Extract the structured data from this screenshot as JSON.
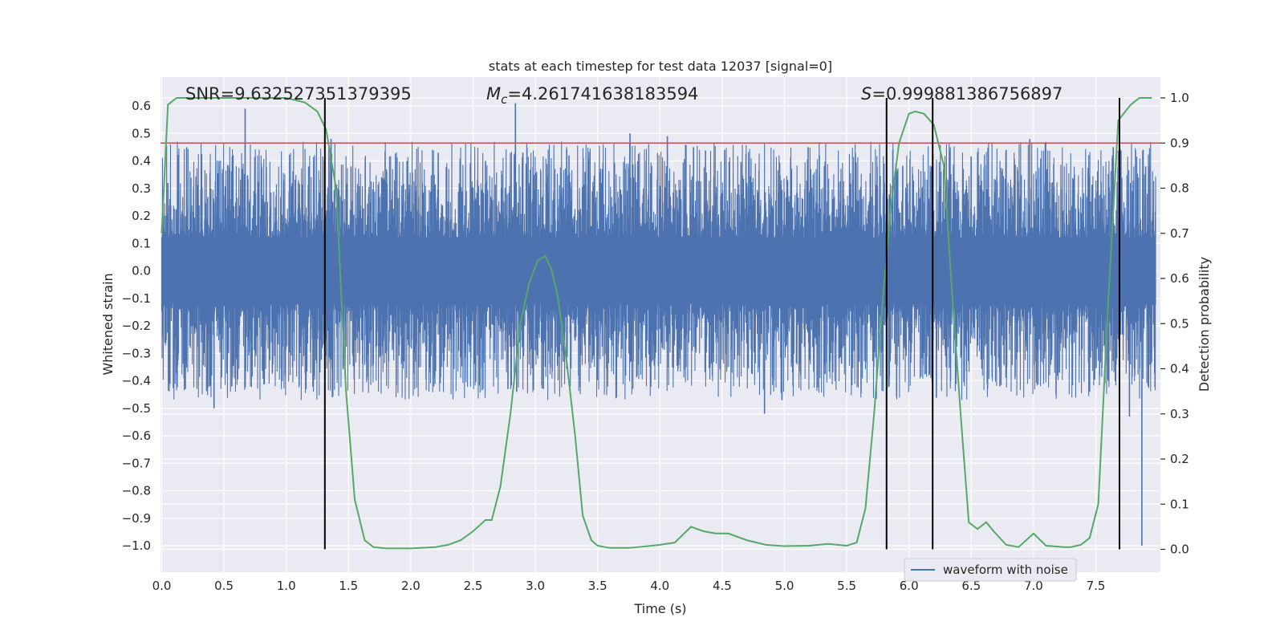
{
  "chart_data": {
    "type": "line",
    "title": "stats at each timestep for test data 12037 [signal=0]",
    "xlabel": "Time (s)",
    "ylabel": "Whitened strain",
    "y2label": "Detection probability",
    "xlim": [
      0.0,
      8.0
    ],
    "ylim": [
      -1.08,
      0.68
    ],
    "y2lim": [
      -0.045,
      1.035
    ],
    "xticks": [
      "0.0",
      "0.5",
      "1.0",
      "1.5",
      "2.0",
      "2.5",
      "3.0",
      "3.5",
      "4.0",
      "4.5",
      "5.0",
      "5.5",
      "6.0",
      "6.5",
      "7.0",
      "7.5"
    ],
    "yticks": [
      "0.6",
      "0.5",
      "0.4",
      "0.3",
      "0.2",
      "0.1",
      "0.0",
      "−0.1",
      "−0.2",
      "−0.3",
      "−0.4",
      "−0.5",
      "−0.6",
      "−0.7",
      "−0.8",
      "−0.9",
      "−1.0"
    ],
    "y2ticks": [
      "1.0",
      "0.9",
      "0.8",
      "0.7",
      "0.6",
      "0.5",
      "0.4",
      "0.3",
      "0.2",
      "0.1",
      "0.0"
    ],
    "annotations": {
      "snr": "SNR=9.632527351379395",
      "mc_symbol": "M",
      "mc_sub": "c",
      "mc_value": "=4.261741638183594",
      "s_symbol": "S",
      "s_value": "=0.999881386756897"
    },
    "legend": {
      "label": "waveform with noise",
      "location": "lower-right"
    },
    "series": [
      {
        "name": "waveform with noise",
        "axis": "left",
        "color": "#4c72b0",
        "envelope_upper": 0.27,
        "envelope_lower": -0.27,
        "spikes": [
          [
            0.05,
            0.32
          ],
          [
            0.19,
            -0.43
          ],
          [
            0.2,
            0.45
          ],
          [
            0.42,
            -0.5
          ],
          [
            0.46,
            0.4
          ],
          [
            0.67,
            0.59
          ],
          [
            1.18,
            0.38
          ],
          [
            1.27,
            -0.37
          ],
          [
            1.36,
            0.48
          ],
          [
            1.37,
            -0.46
          ],
          [
            1.52,
            0.38
          ],
          [
            1.97,
            0.4
          ],
          [
            2.22,
            0.43
          ],
          [
            2.6,
            0.4
          ],
          [
            2.78,
            -0.43
          ],
          [
            2.84,
            0.61
          ],
          [
            2.85,
            -0.44
          ],
          [
            2.9,
            0.43
          ],
          [
            3.27,
            0.42
          ],
          [
            3.76,
            0.5
          ],
          [
            4.06,
            0.49
          ],
          [
            4.27,
            0.45
          ],
          [
            4.52,
            0.44
          ],
          [
            4.84,
            -0.52
          ],
          [
            4.98,
            -0.47
          ],
          [
            5.19,
            0.45
          ],
          [
            5.28,
            0.42
          ],
          [
            5.84,
            -0.42
          ],
          [
            5.87,
            0.44
          ],
          [
            6.18,
            0.38
          ],
          [
            6.73,
            -0.42
          ],
          [
            6.78,
            0.44
          ],
          [
            6.97,
            0.48
          ],
          [
            7.45,
            -0.44
          ],
          [
            7.64,
            0.45
          ],
          [
            7.69,
            -0.56
          ],
          [
            7.77,
            -0.53
          ],
          [
            7.87,
            -1.0
          ],
          [
            7.88,
            0.44
          ],
          [
            7.9,
            0.38
          ]
        ]
      },
      {
        "name": "detection probability",
        "axis": "right",
        "color": "#55a868",
        "x": [
          0.0,
          0.05,
          0.12,
          0.25,
          0.5,
          0.75,
          1.0,
          1.15,
          1.25,
          1.32,
          1.4,
          1.48,
          1.55,
          1.63,
          1.7,
          1.8,
          2.0,
          2.2,
          2.3,
          2.4,
          2.5,
          2.6,
          2.65,
          2.72,
          2.8,
          2.88,
          2.95,
          3.02,
          3.08,
          3.13,
          3.18,
          3.25,
          3.32,
          3.38,
          3.45,
          3.5,
          3.6,
          3.75,
          3.9,
          4.0,
          4.12,
          4.25,
          4.35,
          4.45,
          4.55,
          4.7,
          4.85,
          5.0,
          5.2,
          5.35,
          5.5,
          5.58,
          5.65,
          5.72,
          5.78,
          5.85,
          5.92,
          6.0,
          6.05,
          6.12,
          6.2,
          6.28,
          6.35,
          6.42,
          6.48,
          6.55,
          6.62,
          6.68,
          6.78,
          6.88,
          7.0,
          7.1,
          7.25,
          7.3,
          7.38,
          7.45,
          7.52,
          7.6,
          7.68,
          7.78,
          7.85,
          7.95
        ],
        "y": [
          0.7,
          0.985,
          1.0,
          1.0,
          1.0,
          1.0,
          1.0,
          0.99,
          0.97,
          0.93,
          0.8,
          0.35,
          0.11,
          0.02,
          0.005,
          0.002,
          0.002,
          0.005,
          0.01,
          0.02,
          0.04,
          0.065,
          0.065,
          0.14,
          0.3,
          0.5,
          0.59,
          0.64,
          0.65,
          0.62,
          0.56,
          0.42,
          0.25,
          0.075,
          0.02,
          0.008,
          0.003,
          0.003,
          0.007,
          0.01,
          0.015,
          0.05,
          0.04,
          0.035,
          0.035,
          0.02,
          0.01,
          0.007,
          0.008,
          0.012,
          0.008,
          0.015,
          0.09,
          0.3,
          0.52,
          0.75,
          0.9,
          0.965,
          0.97,
          0.965,
          0.94,
          0.85,
          0.55,
          0.28,
          0.06,
          0.045,
          0.06,
          0.04,
          0.01,
          0.005,
          0.035,
          0.008,
          0.005,
          0.005,
          0.01,
          0.025,
          0.1,
          0.55,
          0.95,
          0.985,
          1.0,
          1.0
        ]
      }
    ],
    "threshold": {
      "axis": "right",
      "value": 0.9,
      "color": "#c44e52"
    },
    "vlines": [
      1.31,
      5.82,
      6.19,
      7.69
    ]
  }
}
